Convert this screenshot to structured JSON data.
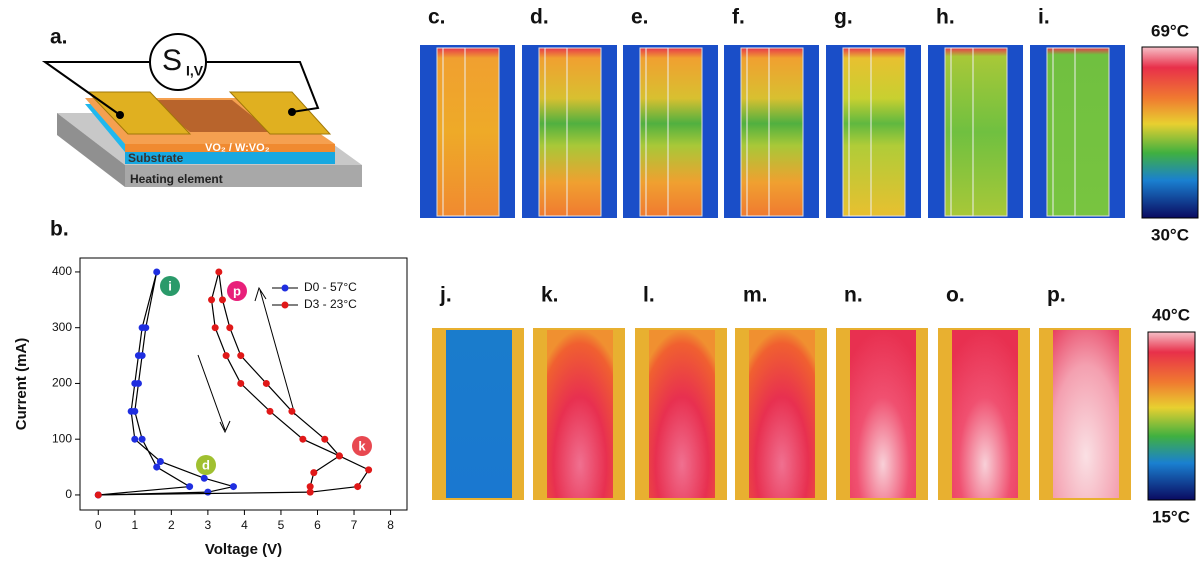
{
  "panel_labels": {
    "a": "a.",
    "b": "b.",
    "top": [
      "c.",
      "d.",
      "e.",
      "f.",
      "g.",
      "h.",
      "i."
    ],
    "bottom": [
      "j.",
      "k.",
      "l.",
      "m.",
      "n.",
      "o.",
      "p."
    ]
  },
  "diagram": {
    "source_symbol": "S",
    "source_subscript": "I,V",
    "layer_film": "VO₂ / W:VO₂",
    "layer_substrate": "Substrate",
    "layer_heater": "Heating element"
  },
  "colorbar_top": {
    "max": "69°C",
    "min": "30°C"
  },
  "colorbar_bottom": {
    "max": "40°C",
    "min": "15°C"
  },
  "chart_data": {
    "type": "line",
    "x_label": "Voltage (V)",
    "y_label": "Current (mA)",
    "xlim": [
      -0.5,
      8.45
    ],
    "ylim": [
      -27,
      425
    ],
    "xticks": [
      0,
      1,
      2,
      3,
      4,
      5,
      6,
      7,
      8
    ],
    "yticks": [
      0,
      100,
      200,
      300,
      400
    ],
    "legend": "upper right",
    "annotations": [
      "i",
      "p",
      "d",
      "k"
    ],
    "series": [
      {
        "name": "D0 - 57°C",
        "color": "#1f2ee0",
        "x": [
          0,
          3.0,
          3.7,
          2.9,
          1.7,
          1.0,
          0.9,
          1.0,
          1.1,
          1.2,
          1.6,
          1.3,
          1.2,
          1.1,
          1.0,
          1.2,
          1.6,
          2.5,
          0
        ],
        "values": [
          0,
          5,
          15,
          30,
          60,
          100,
          150,
          200,
          250,
          300,
          400,
          300,
          250,
          200,
          150,
          100,
          50,
          15,
          0
        ]
      },
      {
        "name": "D3 - 23°C",
        "color": "#e01818",
        "x": [
          0,
          5.8,
          7.1,
          7.4,
          6.6,
          5.6,
          4.7,
          3.9,
          3.5,
          3.2,
          3.1,
          3.3,
          3.4,
          3.6,
          3.9,
          4.6,
          5.3,
          6.2,
          6.6,
          5.9,
          5.8
        ],
        "values": [
          0,
          5,
          15,
          45,
          70,
          100,
          150,
          200,
          250,
          300,
          350,
          400,
          350,
          300,
          250,
          200,
          150,
          100,
          70,
          40,
          15
        ]
      }
    ]
  }
}
